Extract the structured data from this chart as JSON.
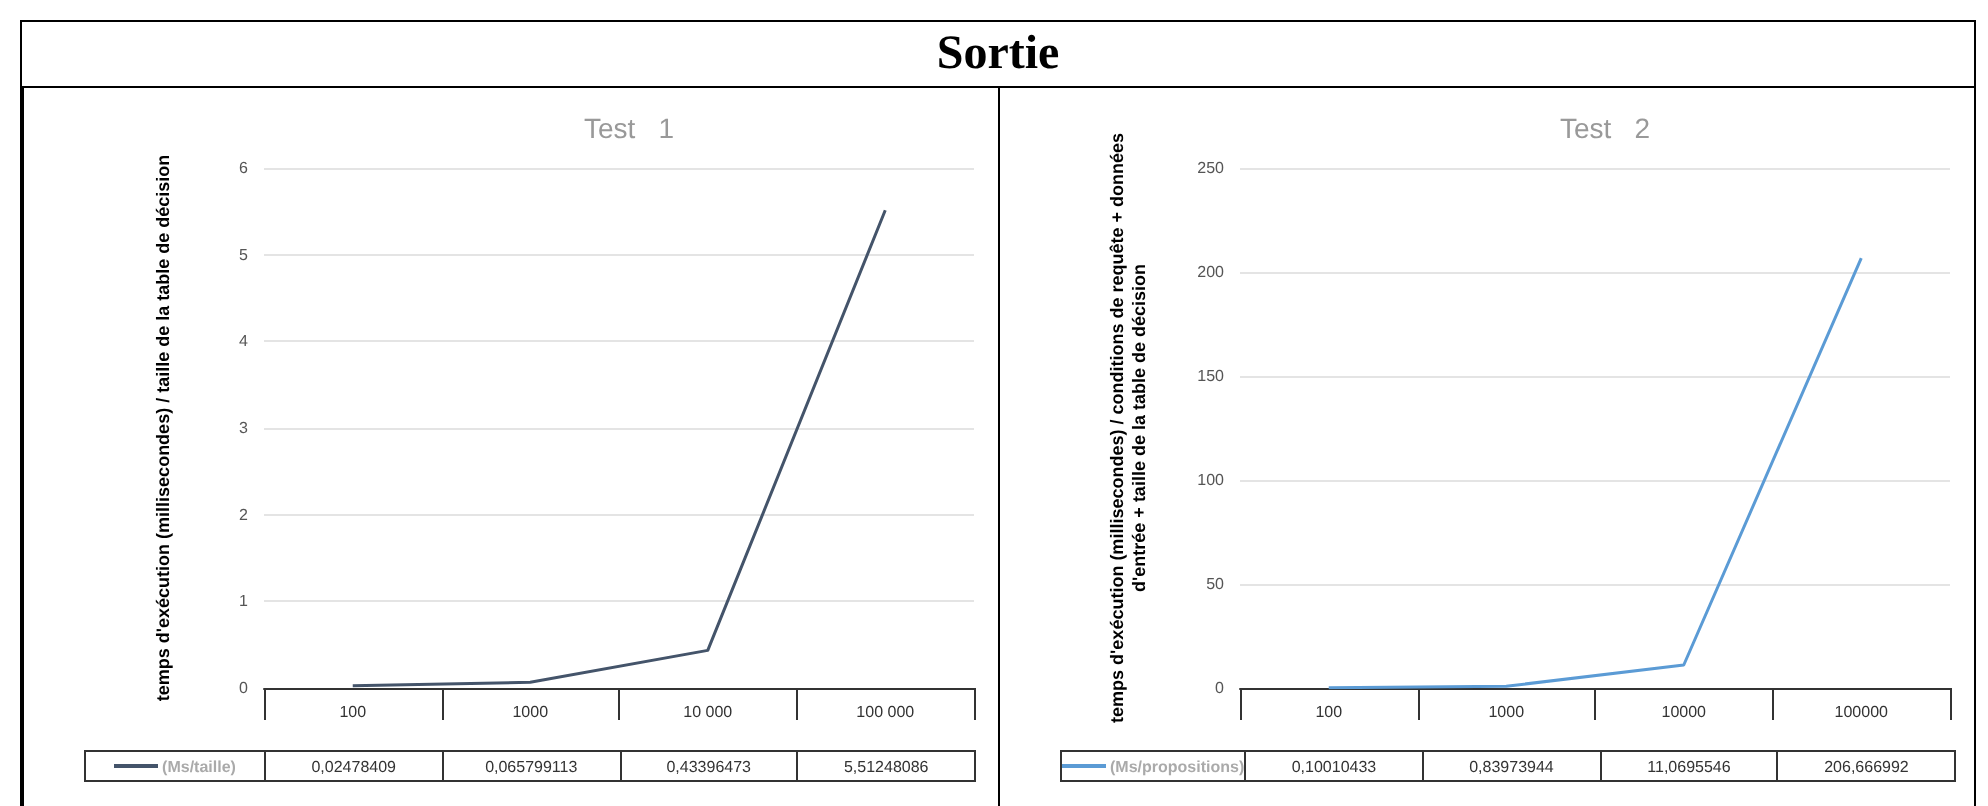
{
  "chart_data": [
    {
      "type": "line",
      "title": "Test   1",
      "ylabel": "temps d'exécution (millisecondes) / taille de la table de décision",
      "annotations": [
        "Sortie"
      ],
      "categories": [
        "100",
        "1000",
        "10 000",
        "100 000"
      ],
      "series": [
        {
          "name": "(Ms/taille)",
          "color": "#44546a",
          "values": [
            0.02478409,
            0.065799113,
            0.43396473,
            5.51248086
          ],
          "value_labels": [
            "0,02478409",
            "0,065799113",
            "0,43396473",
            "5,51248086"
          ]
        }
      ],
      "ylim": [
        0,
        6
      ],
      "yticks": [
        0,
        1,
        2,
        3,
        4,
        5,
        6
      ],
      "grid": "y",
      "legend": "bottom left",
      "marker": "none",
      "line_style": "solid"
    },
    {
      "type": "line",
      "title": "Test   2",
      "ylabel": "temps d'exécution (millisecondes) / conditions de requête + données d'entrée + taille de la table de décision",
      "categories": [
        "100",
        "1000",
        "10000",
        "100000"
      ],
      "series": [
        {
          "name": "(Ms/propositions)",
          "color": "#5b9bd5",
          "values": [
            0.10010433,
            0.83973944,
            11.0695546,
            206.666992
          ],
          "value_labels": [
            "0,10010433",
            "0,83973944",
            "11,0695546",
            "206,666992"
          ]
        }
      ],
      "ylim": [
        0,
        250
      ],
      "yticks": [
        0,
        50,
        100,
        150,
        200,
        250
      ],
      "grid": "y",
      "legend": "bottom left",
      "marker": "none",
      "line_style": "solid"
    }
  ]
}
